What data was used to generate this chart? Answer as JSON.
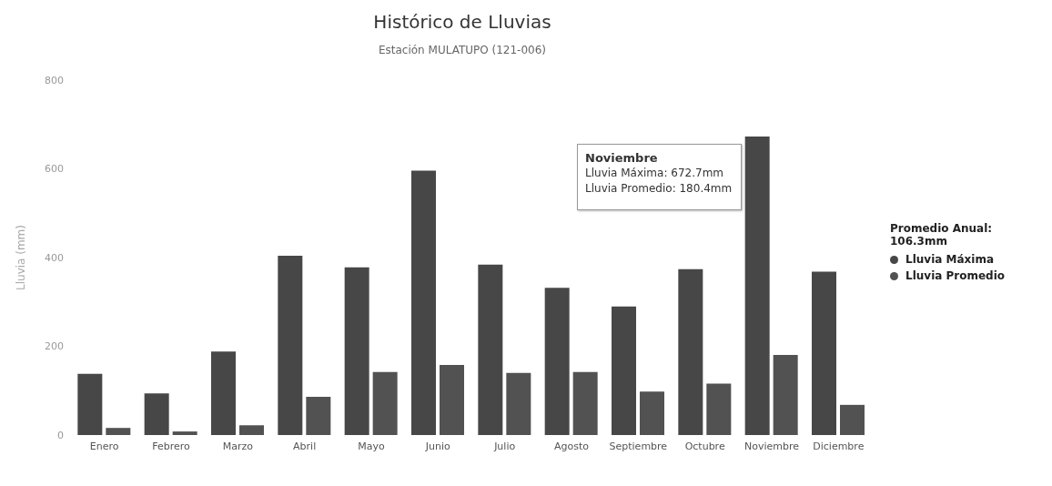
{
  "chart_data": {
    "type": "bar",
    "title": "Histórico de Lluvias",
    "subtitle": "Estación MULATUPO (121-006)",
    "ylabel": "Lluvia (mm)",
    "legend_title": "Promedio Anual: 106.3mm",
    "categories": [
      "Enero",
      "Febrero",
      "Marzo",
      "Abril",
      "Mayo",
      "Junio",
      "Julio",
      "Agosto",
      "Septiembre",
      "Octubre",
      "Noviembre",
      "Diciembre"
    ],
    "series": [
      {
        "name": "Lluvia Máxima",
        "color": "#474747",
        "values": [
          138,
          94,
          188,
          404,
          378,
          596,
          384,
          332,
          290,
          374,
          672.7,
          368
        ]
      },
      {
        "name": "Lluvia Promedio",
        "color": "#525252",
        "values": [
          16,
          8,
          22,
          86,
          142,
          158,
          140,
          142,
          98,
          116,
          180.4,
          68
        ]
      }
    ],
    "ylim": [
      0,
      800
    ],
    "yticks": [
      0,
      200,
      400,
      600,
      800
    ],
    "grid": false,
    "legend": "right",
    "annotations": [
      "Noviembre",
      "Lluvia Máxima: 672.7mm",
      "Lluvia Promedio: 180.4mm"
    ]
  }
}
